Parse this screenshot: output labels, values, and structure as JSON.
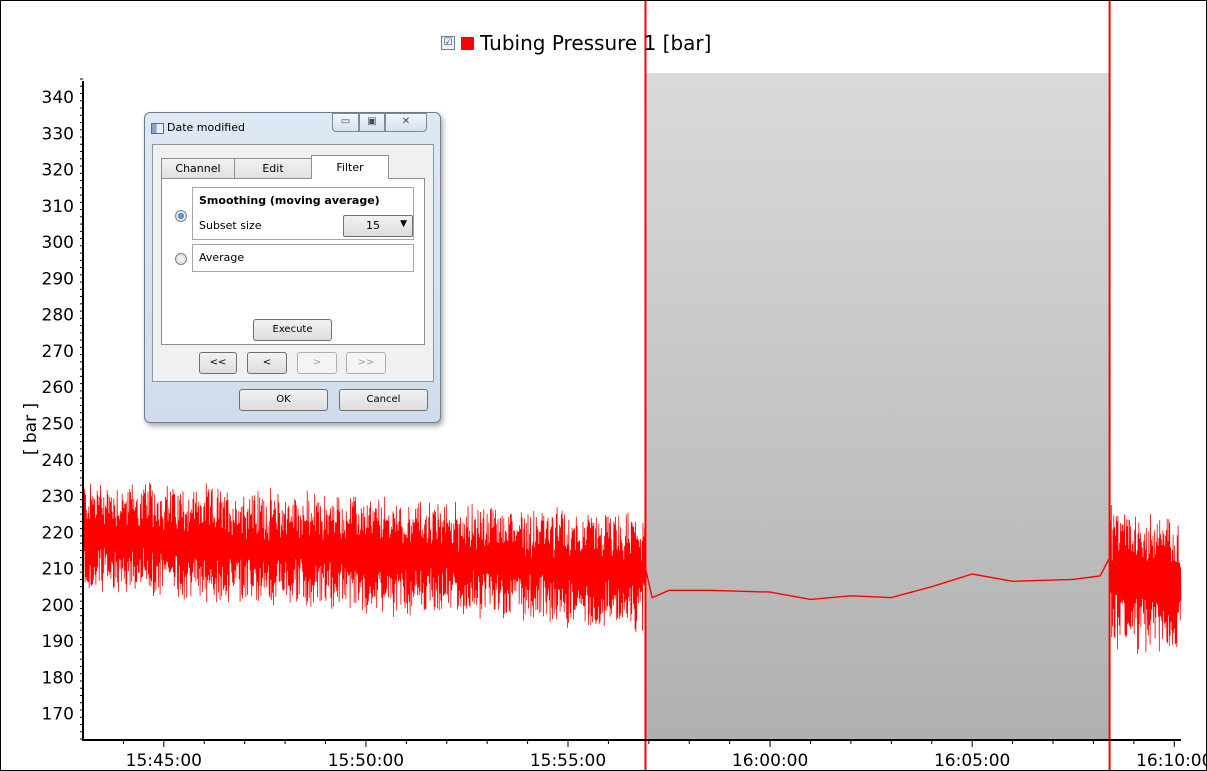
{
  "legend": {
    "checkbox": "☑",
    "label": "Tubing Pressure 1 [bar]",
    "color": "#ff0000"
  },
  "dialog": {
    "title": "Date modified",
    "window_buttons": {
      "minimize": "▭",
      "maximize": "▣",
      "close": "✕"
    },
    "tabs": [
      {
        "label": "Channel"
      },
      {
        "label": "Edit"
      },
      {
        "label": "Filter",
        "active": true
      }
    ],
    "filter": {
      "smoothing_title": "Smoothing (moving average)",
      "subset_label": "Subset size",
      "subset_value": "15",
      "average_label": "Average",
      "selected": "smoothing",
      "execute_label": "Execute"
    },
    "nav": {
      "first": "<<",
      "prev": "<",
      "next": ">",
      "last": ">>"
    },
    "ok_label": "OK",
    "cancel_label": "Cancel"
  },
  "chart_data": {
    "type": "line",
    "ylabel": "[ bar ]",
    "ylim": [
      163,
      345
    ],
    "yticks": [
      170,
      180,
      190,
      200,
      210,
      220,
      230,
      240,
      250,
      260,
      270,
      280,
      290,
      300,
      310,
      320,
      330,
      340
    ],
    "xlim": [
      "15:43:00",
      "16:10:10"
    ],
    "xticks": [
      "15:45:00",
      "15:50:00",
      "15:55:00",
      "16:00:00",
      "16:05:00",
      "16:10:00"
    ],
    "series": [
      {
        "name": "Tubing Pressure 1 [bar]",
        "color": "#ff0000",
        "segments": [
          {
            "from": "15:43:00",
            "to": "15:56:55",
            "kind": "noisy",
            "center_start": 219,
            "center_end": 209,
            "amplitude": 15
          },
          {
            "kind": "smooth",
            "points": [
              [
                "15:56:55",
                210
              ],
              [
                "15:57:05",
                202
              ],
              [
                "15:57:30",
                204
              ],
              [
                "15:58:30",
                204
              ],
              [
                "16:00:00",
                203.5
              ],
              [
                "16:01:00",
                201.5
              ],
              [
                "16:02:00",
                202.5
              ],
              [
                "16:03:00",
                202
              ],
              [
                "16:04:00",
                205
              ],
              [
                "16:05:00",
                208.5
              ],
              [
                "16:06:00",
                206.5
              ],
              [
                "16:07:30",
                207
              ],
              [
                "16:08:10",
                208
              ],
              [
                "16:08:24",
                213
              ]
            ]
          },
          {
            "from": "16:08:24",
            "to": "16:10:10",
            "kind": "noisy",
            "center_start": 208,
            "center_end": 205,
            "amplitude": 19
          }
        ]
      }
    ],
    "selection": {
      "from": "15:56:55",
      "to": "16:08:24",
      "border_color": "#ff0000"
    }
  }
}
